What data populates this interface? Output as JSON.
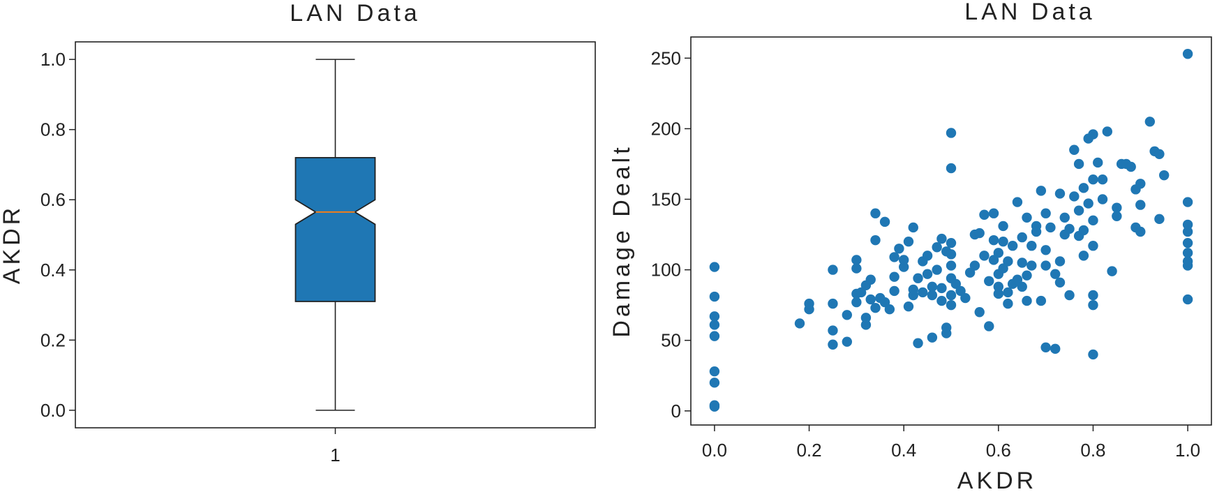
{
  "chart_data": [
    {
      "type": "box",
      "title": "LAN Data",
      "ylabel": "AKDR",
      "xlabel": "",
      "categories": [
        "1"
      ],
      "notched": true,
      "ylim": [
        -0.05,
        1.05
      ],
      "yticks": [
        "0.0",
        "0.2",
        "0.4",
        "0.6",
        "0.8",
        "1.0"
      ],
      "yticks_values": [
        0,
        0.2,
        0.4,
        0.6,
        0.8,
        1.0
      ],
      "stats": {
        "whisker_low": 0.0,
        "q1": 0.31,
        "median": 0.565,
        "notch_low": 0.53,
        "notch_high": 0.6,
        "q3": 0.72,
        "whisker_high": 1.0
      },
      "colors": {
        "box": "#1f77b4",
        "median": "#ff7f0e",
        "edge": "#222222"
      }
    },
    {
      "type": "scatter",
      "title": "LAN Data",
      "xlabel": "AKDR",
      "ylabel": "Damage Dealt",
      "xlim": [
        -0.05,
        1.05
      ],
      "ylim": [
        -10,
        265
      ],
      "xticks": [
        "0.0",
        "0.2",
        "0.4",
        "0.6",
        "0.8",
        "1.0"
      ],
      "xticks_values": [
        0,
        0.2,
        0.4,
        0.6,
        0.8,
        1.0
      ],
      "yticks": [
        "0",
        "50",
        "100",
        "150",
        "200",
        "250"
      ],
      "yticks_values": [
        0,
        50,
        100,
        150,
        200,
        250
      ],
      "color": "#1f77b4",
      "points": [
        [
          0,
          3
        ],
        [
          0,
          4
        ],
        [
          0,
          20
        ],
        [
          0,
          28
        ],
        [
          0,
          53
        ],
        [
          0,
          61
        ],
        [
          0,
          67
        ],
        [
          0,
          81
        ],
        [
          0,
          102
        ],
        [
          0.18,
          62
        ],
        [
          0.2,
          72
        ],
        [
          0.2,
          76
        ],
        [
          0.25,
          47
        ],
        [
          0.25,
          57
        ],
        [
          0.25,
          76
        ],
        [
          0.25,
          100
        ],
        [
          0.28,
          49
        ],
        [
          0.28,
          68
        ],
        [
          0.3,
          77
        ],
        [
          0.3,
          83
        ],
        [
          0.3,
          101
        ],
        [
          0.3,
          107
        ],
        [
          0.31,
          84
        ],
        [
          0.32,
          61
        ],
        [
          0.32,
          66
        ],
        [
          0.32,
          89
        ],
        [
          0.33,
          93
        ],
        [
          0.33,
          79
        ],
        [
          0.34,
          121
        ],
        [
          0.34,
          140
        ],
        [
          0.34,
          73
        ],
        [
          0.35,
          80
        ],
        [
          0.36,
          134
        ],
        [
          0.36,
          77
        ],
        [
          0.37,
          72
        ],
        [
          0.38,
          85
        ],
        [
          0.38,
          95
        ],
        [
          0.38,
          109
        ],
        [
          0.39,
          115
        ],
        [
          0.4,
          102
        ],
        [
          0.4,
          107
        ],
        [
          0.41,
          74
        ],
        [
          0.41,
          120
        ],
        [
          0.42,
          82
        ],
        [
          0.42,
          86
        ],
        [
          0.42,
          130
        ],
        [
          0.43,
          48
        ],
        [
          0.43,
          94
        ],
        [
          0.44,
          106
        ],
        [
          0.44,
          84
        ],
        [
          0.45,
          97
        ],
        [
          0.45,
          110
        ],
        [
          0.46,
          52
        ],
        [
          0.46,
          82
        ],
        [
          0.46,
          88
        ],
        [
          0.47,
          116
        ],
        [
          0.47,
          100
        ],
        [
          0.48,
          78
        ],
        [
          0.48,
          87
        ],
        [
          0.48,
          122
        ],
        [
          0.49,
          55
        ],
        [
          0.49,
          59
        ],
        [
          0.49,
          113
        ],
        [
          0.5,
          75
        ],
        [
          0.5,
          82
        ],
        [
          0.5,
          94
        ],
        [
          0.5,
          103
        ],
        [
          0.5,
          111
        ],
        [
          0.5,
          119
        ],
        [
          0.5,
          172
        ],
        [
          0.5,
          197
        ],
        [
          0.51,
          90
        ],
        [
          0.52,
          85
        ],
        [
          0.53,
          80
        ],
        [
          0.54,
          98
        ],
        [
          0.55,
          125
        ],
        [
          0.55,
          103
        ],
        [
          0.56,
          126
        ],
        [
          0.56,
          70
        ],
        [
          0.57,
          110
        ],
        [
          0.57,
          139
        ],
        [
          0.58,
          60
        ],
        [
          0.58,
          92
        ],
        [
          0.59,
          107
        ],
        [
          0.59,
          121
        ],
        [
          0.59,
          140
        ],
        [
          0.6,
          83
        ],
        [
          0.6,
          88
        ],
        [
          0.6,
          97
        ],
        [
          0.6,
          112
        ],
        [
          0.61,
          101
        ],
        [
          0.61,
          120
        ],
        [
          0.61,
          131
        ],
        [
          0.62,
          76
        ],
        [
          0.62,
          84
        ],
        [
          0.62,
          106
        ],
        [
          0.63,
          90
        ],
        [
          0.63,
          117
        ],
        [
          0.64,
          93
        ],
        [
          0.64,
          148
        ],
        [
          0.65,
          88
        ],
        [
          0.65,
          105
        ],
        [
          0.65,
          123
        ],
        [
          0.66,
          78
        ],
        [
          0.66,
          96
        ],
        [
          0.66,
          137
        ],
        [
          0.67,
          103
        ],
        [
          0.67,
          117
        ],
        [
          0.68,
          127
        ],
        [
          0.68,
          131
        ],
        [
          0.69,
          156
        ],
        [
          0.69,
          78
        ],
        [
          0.7,
          103
        ],
        [
          0.7,
          114
        ],
        [
          0.7,
          140
        ],
        [
          0.7,
          45
        ],
        [
          0.71,
          130
        ],
        [
          0.72,
          97
        ],
        [
          0.72,
          44
        ],
        [
          0.73,
          91
        ],
        [
          0.73,
          106
        ],
        [
          0.73,
          154
        ],
        [
          0.74,
          125
        ],
        [
          0.74,
          137
        ],
        [
          0.75,
          82
        ],
        [
          0.75,
          129
        ],
        [
          0.76,
          152
        ],
        [
          0.76,
          185
        ],
        [
          0.77,
          124
        ],
        [
          0.77,
          142
        ],
        [
          0.77,
          175
        ],
        [
          0.78,
          110
        ],
        [
          0.78,
          128
        ],
        [
          0.78,
          158
        ],
        [
          0.79,
          147
        ],
        [
          0.79,
          193
        ],
        [
          0.8,
          40
        ],
        [
          0.8,
          75
        ],
        [
          0.8,
          82
        ],
        [
          0.8,
          117
        ],
        [
          0.8,
          135
        ],
        [
          0.8,
          164
        ],
        [
          0.8,
          196
        ],
        [
          0.81,
          176
        ],
        [
          0.82,
          150
        ],
        [
          0.82,
          164
        ],
        [
          0.83,
          198
        ],
        [
          0.84,
          99
        ],
        [
          0.85,
          144
        ],
        [
          0.85,
          138
        ],
        [
          0.86,
          175
        ],
        [
          0.87,
          175
        ],
        [
          0.88,
          173
        ],
        [
          0.89,
          130
        ],
        [
          0.89,
          157
        ],
        [
          0.9,
          127
        ],
        [
          0.9,
          146
        ],
        [
          0.9,
          161
        ],
        [
          0.92,
          205
        ],
        [
          0.93,
          184
        ],
        [
          0.94,
          136
        ],
        [
          0.94,
          182
        ],
        [
          0.95,
          167
        ],
        [
          1.0,
          79
        ],
        [
          1.0,
          103
        ],
        [
          1.0,
          106
        ],
        [
          1.0,
          112
        ],
        [
          1.0,
          119
        ],
        [
          1.0,
          127
        ],
        [
          1.0,
          132
        ],
        [
          1.0,
          148
        ],
        [
          1.0,
          253
        ]
      ]
    }
  ]
}
